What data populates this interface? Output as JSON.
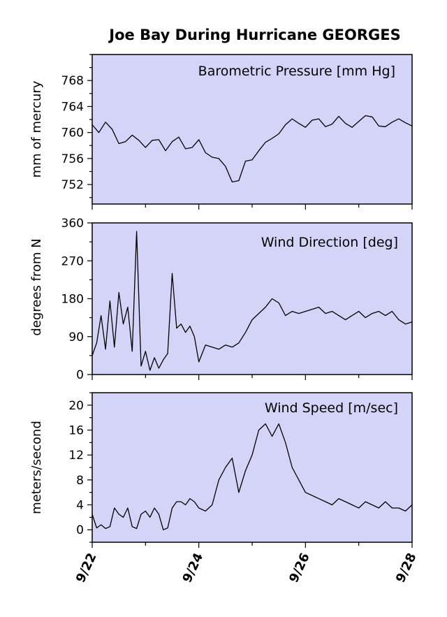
{
  "chart_data": {
    "type": "line",
    "title": "Joe Bay During Hurricane GEORGES",
    "x_ticks": [
      "9/22",
      "9/24",
      "9/26",
      "9/28"
    ],
    "xlim": [
      "1998-09-22",
      "1998-09-28"
    ],
    "grid": false,
    "panels": [
      {
        "label": "Barometric Pressure [mm Hg]",
        "ylabel": "mm of mercury",
        "ylim": [
          749,
          772
        ],
        "yticks": [
          752,
          756,
          760,
          764,
          768
        ],
        "series": [
          {
            "x": [
              "9/22 00:00",
              "9/22 03:00",
              "9/22 06:00",
              "9/22 09:00",
              "9/22 12:00",
              "9/22 15:00",
              "9/22 18:00",
              "9/22 21:00",
              "9/23 00:00",
              "9/23 03:00",
              "9/23 06:00",
              "9/23 09:00",
              "9/23 12:00",
              "9/23 15:00",
              "9/23 18:00",
              "9/23 21:00",
              "9/24 00:00",
              "9/24 03:00",
              "9/24 06:00",
              "9/24 09:00",
              "9/24 12:00",
              "9/24 15:00",
              "9/24 18:00",
              "9/24 21:00",
              "9/25 00:00",
              "9/25 03:00",
              "9/25 06:00",
              "9/25 09:00",
              "9/25 12:00",
              "9/25 15:00",
              "9/25 18:00",
              "9/25 21:00",
              "9/26 00:00",
              "9/26 03:00",
              "9/26 06:00",
              "9/26 09:00",
              "9/26 12:00",
              "9/26 15:00",
              "9/26 18:00",
              "9/26 21:00",
              "9/27 00:00",
              "9/27 03:00",
              "9/27 06:00",
              "9/27 09:00",
              "9/27 12:00",
              "9/27 15:00",
              "9/27 18:00",
              "9/27 21:00",
              "9/28 00:00"
            ],
            "values": [
              761.2,
              760.0,
              761.6,
              760.5,
              758.3,
              758.6,
              759.6,
              758.8,
              757.7,
              758.8,
              758.9,
              757.2,
              758.6,
              759.3,
              757.5,
              757.7,
              758.9,
              756.9,
              756.2,
              756.0,
              754.8,
              752.4,
              752.6,
              755.6,
              755.8,
              757.2,
              758.5,
              759.1,
              759.8,
              761.2,
              762.1,
              761.4,
              760.8,
              761.9,
              762.1,
              760.9,
              761.3,
              762.5,
              761.4,
              760.8,
              761.7,
              762.6,
              762.4,
              761.0,
              760.9,
              761.6,
              762.1,
              761.5,
              761.0
            ]
          }
        ]
      },
      {
        "label": "Wind Direction [deg]",
        "ylabel": "degrees from N",
        "ylim": [
          0,
          360
        ],
        "yticks": [
          0,
          90,
          180,
          270,
          360
        ],
        "series": [
          {
            "x": [
              "9/22 00:00",
              "9/22 02:00",
              "9/22 04:00",
              "9/22 06:00",
              "9/22 08:00",
              "9/22 10:00",
              "9/22 12:00",
              "9/22 14:00",
              "9/22 16:00",
              "9/22 18:00",
              "9/22 20:00",
              "9/22 22:00",
              "9/23 00:00",
              "9/23 02:00",
              "9/23 04:00",
              "9/23 06:00",
              "9/23 08:00",
              "9/23 10:00",
              "9/23 12:00",
              "9/23 14:00",
              "9/23 16:00",
              "9/23 18:00",
              "9/23 20:00",
              "9/23 22:00",
              "9/24 00:00",
              "9/24 03:00",
              "9/24 06:00",
              "9/24 09:00",
              "9/24 12:00",
              "9/24 15:00",
              "9/24 18:00",
              "9/24 21:00",
              "9/25 00:00",
              "9/25 03:00",
              "9/25 06:00",
              "9/25 09:00",
              "9/25 12:00",
              "9/25 15:00",
              "9/25 18:00",
              "9/25 21:00",
              "9/26 00:00",
              "9/26 03:00",
              "9/26 06:00",
              "9/26 09:00",
              "9/26 12:00",
              "9/26 15:00",
              "9/26 18:00",
              "9/26 21:00",
              "9/27 00:00",
              "9/27 03:00",
              "9/27 06:00",
              "9/27 09:00",
              "9/27 12:00",
              "9/27 15:00",
              "9/27 18:00",
              "9/27 21:00",
              "9/28 00:00"
            ],
            "values": [
              45,
              75,
              140,
              60,
              175,
              65,
              195,
              120,
              160,
              55,
              340,
              20,
              55,
              10,
              40,
              15,
              35,
              50,
              240,
              110,
              120,
              100,
              115,
              90,
              30,
              70,
              65,
              60,
              70,
              65,
              75,
              100,
              130,
              145,
              160,
              180,
              170,
              140,
              150,
              145,
              150,
              155,
              160,
              145,
              150,
              140,
              130,
              140,
              150,
              135,
              145,
              150,
              140,
              150,
              130,
              120,
              125
            ]
          }
        ]
      },
      {
        "label": "Wind Speed [m/sec]",
        "ylabel": "meters/second",
        "ylim": [
          -2,
          22
        ],
        "yticks": [
          0,
          4,
          8,
          12,
          16,
          20
        ],
        "series": [
          {
            "x": [
              "9/22 00:00",
              "9/22 02:00",
              "9/22 04:00",
              "9/22 06:00",
              "9/22 08:00",
              "9/22 10:00",
              "9/22 12:00",
              "9/22 14:00",
              "9/22 16:00",
              "9/22 18:00",
              "9/22 20:00",
              "9/22 22:00",
              "9/23 00:00",
              "9/23 02:00",
              "9/23 04:00",
              "9/23 06:00",
              "9/23 08:00",
              "9/23 10:00",
              "9/23 12:00",
              "9/23 14:00",
              "9/23 16:00",
              "9/23 18:00",
              "9/23 20:00",
              "9/23 22:00",
              "9/24 00:00",
              "9/24 03:00",
              "9/24 06:00",
              "9/24 09:00",
              "9/24 12:00",
              "9/24 15:00",
              "9/24 18:00",
              "9/24 21:00",
              "9/25 00:00",
              "9/25 03:00",
              "9/25 06:00",
              "9/25 09:00",
              "9/25 12:00",
              "9/25 15:00",
              "9/25 18:00",
              "9/25 21:00",
              "9/26 00:00",
              "9/26 03:00",
              "9/26 06:00",
              "9/26 09:00",
              "9/26 12:00",
              "9/26 15:00",
              "9/26 18:00",
              "9/26 21:00",
              "9/27 00:00",
              "9/27 03:00",
              "9/27 06:00",
              "9/27 09:00",
              "9/27 12:00",
              "9/27 15:00",
              "9/27 18:00",
              "9/27 21:00",
              "9/28 00:00"
            ],
            "values": [
              2.5,
              0.3,
              0.8,
              0.2,
              0.5,
              3.5,
              2.5,
              2.0,
              3.5,
              0.5,
              0.2,
              2.5,
              3.0,
              2.0,
              3.5,
              2.5,
              0.0,
              0.3,
              3.5,
              4.5,
              4.5,
              4.0,
              5.0,
              4.5,
              3.5,
              3.0,
              4.0,
              8.0,
              10.0,
              11.5,
              6.0,
              9.5,
              12.0,
              16.0,
              17.0,
              15.0,
              17.0,
              14.0,
              10.0,
              8.0,
              6.0,
              5.5,
              5.0,
              4.5,
              4.0,
              5.0,
              4.5,
              4.0,
              3.5,
              4.5,
              4.0,
              3.5,
              4.5,
              3.5,
              3.5,
              3.0,
              4.0
            ]
          }
        ]
      }
    ]
  }
}
